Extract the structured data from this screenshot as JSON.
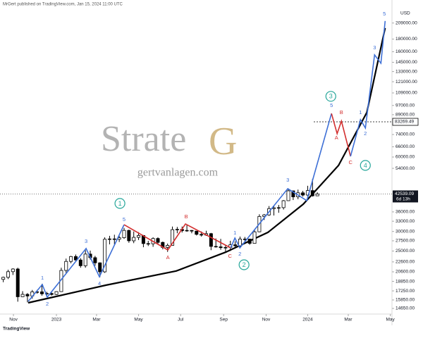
{
  "header": {
    "published": "MrGert published on TradingView.com, Jan 15, 2024 11:00 UTC",
    "currency": "USD",
    "logo": "TradingView"
  },
  "watermark": {
    "word": "Strate",
    "letter": "G",
    "website": "gertvanlagen.com"
  },
  "chart_data": {
    "type": "candlestick",
    "log_scale": true,
    "up_color": "#ffffff",
    "down_color": "#000000",
    "border_color": "#000000",
    "open": [
      19200,
      19570,
      20630,
      21150,
      16330,
      16700,
      16450,
      17100,
      17100,
      16780,
      16840,
      16680,
      17130,
      20870,
      22700,
      23750,
      23000,
      21800,
      24300,
      23500,
      22400,
      20600,
      27900,
      27990,
      27900,
      28300,
      30300,
      27500,
      28400,
      28900,
      26800,
      26750,
      28100,
      27100,
      25850,
      26350,
      30500,
      30600,
      30200,
      30300,
      30100,
      29200,
      29000,
      29400,
      26100,
      26000,
      25800,
      25850,
      26500,
      26250,
      27950,
      27950,
      26850,
      29900,
      34500,
      35000,
      37100,
      37400,
      37450,
      39950,
      43800,
      41400,
      43000,
      42100,
      43900,
      41800
    ],
    "high": [
      19700,
      21000,
      21300,
      21400,
      17200,
      16900,
      17400,
      17400,
      18400,
      17100,
      16970,
      17200,
      21400,
      23300,
      23900,
      24200,
      23400,
      25200,
      25100,
      23900,
      22500,
      28400,
      28800,
      29100,
      28800,
      31000,
      30500,
      30000,
      29800,
      29000,
      27500,
      28400,
      28400,
      27300,
      26800,
      31400,
      31300,
      31400,
      31800,
      30400,
      30100,
      30000,
      30200,
      29600,
      28100,
      28000,
      26400,
      27500,
      27400,
      28600,
      28500,
      28000,
      30400,
      35200,
      35300,
      38000,
      37900,
      38400,
      40200,
      44700,
      43900,
      44300,
      43800,
      45900,
      49000,
      43200
    ],
    "low": [
      18700,
      19250,
      20000,
      15600,
      16300,
      15500,
      16050,
      16800,
      16500,
      16300,
      16500,
      16600,
      17100,
      20400,
      22300,
      22700,
      21400,
      21400,
      23100,
      21800,
      19600,
      20400,
      26600,
      26600,
      27200,
      28000,
      27000,
      26900,
      27700,
      25900,
      26200,
      26000,
      26600,
      25400,
      24800,
      26300,
      29500,
      29700,
      29900,
      29500,
      28900,
      28600,
      28800,
      25200,
      25800,
      25300,
      24900,
      25000,
      26000,
      26000,
      27200,
      26500,
      26800,
      29800,
      33400,
      34700,
      34800,
      35700,
      36800,
      39900,
      40200,
      40500,
      41500,
      40800,
      41500,
      41700
    ],
    "close": [
      19570,
      20630,
      21150,
      16330,
      16700,
      16450,
      17100,
      17100,
      16780,
      16840,
      16680,
      17130,
      20870,
      22700,
      23750,
      23000,
      21800,
      24300,
      23500,
      22400,
      20600,
      27900,
      27990,
      27900,
      28300,
      30300,
      27500,
      28400,
      28900,
      26800,
      26750,
      28100,
      27100,
      25850,
      26350,
      30500,
      30600,
      30200,
      30300,
      30100,
      29200,
      29000,
      29400,
      26100,
      26000,
      25800,
      25850,
      26500,
      26250,
      27950,
      27950,
      26850,
      29900,
      34500,
      35000,
      37100,
      37400,
      37450,
      39950,
      43800,
      41400,
      43000,
      42100,
      43900,
      41800,
      42539.09
    ],
    "xlim": [
      -0.68,
      80.3
    ],
    "xticks": [
      {
        "value": 2.1,
        "label": "Nov"
      },
      {
        "value": 11,
        "label": "2023"
      },
      {
        "value": 19.3,
        "label": "Mar"
      },
      {
        "value": 28,
        "label": "May"
      },
      {
        "value": 36.7,
        "label": "Jul"
      },
      {
        "value": 45.6,
        "label": "Sep"
      },
      {
        "value": 54.4,
        "label": "Nov"
      },
      {
        "value": 63,
        "label": "2024"
      },
      {
        "value": 71.4,
        "label": "Mar"
      },
      {
        "value": 80.1,
        "label": "May"
      }
    ],
    "ylim": [
      13900,
      259000
    ],
    "yticks": [
      {
        "value": 209000,
        "label": "209000.00"
      },
      {
        "value": 180000,
        "label": "180000.00"
      },
      {
        "value": 160000,
        "label": "160000.00"
      },
      {
        "value": 145000,
        "label": "145000.00"
      },
      {
        "value": 133000,
        "label": "133000.00"
      },
      {
        "value": 121000,
        "label": "121000.00"
      },
      {
        "value": 109000,
        "label": "109000.00"
      },
      {
        "value": 97000,
        "label": "97000.00"
      },
      {
        "value": 89000,
        "label": "89000.00"
      },
      {
        "value": 74000,
        "label": "74000.00"
      },
      {
        "value": 66000,
        "label": "66000.00"
      },
      {
        "value": 60000,
        "label": "60000.00"
      },
      {
        "value": 54000,
        "label": "54000.00"
      },
      {
        "value": 36000,
        "label": "36000.00"
      },
      {
        "value": 33000,
        "label": "33000.00"
      },
      {
        "value": 30000,
        "label": "30000.00"
      },
      {
        "value": 27500,
        "label": "27500.00"
      },
      {
        "value": 25000,
        "label": "25000.00"
      },
      {
        "value": 22600,
        "label": "22600.00"
      },
      {
        "value": 20600,
        "label": "20600.00"
      },
      {
        "value": 18850,
        "label": "18850.00"
      },
      {
        "value": 17250,
        "label": "17250.00"
      },
      {
        "value": 15850,
        "label": "15850.00"
      },
      {
        "value": 14650,
        "label": "14650.00"
      }
    ],
    "price_line": {
      "value": 83269.49,
      "label": "83269.49",
      "color": "#000000"
    },
    "last_price": {
      "value": 42539.09,
      "label": "42539.09",
      "countdown": "6d 13h",
      "color": "#131722"
    },
    "support_curve": {
      "color": "#000000",
      "x": [
        5.16,
        21.22,
        35.8,
        46.0,
        54.8,
        62.09,
        69.39,
        75.23,
        79.03
      ],
      "y": [
        15440,
        18190,
        20760,
        24730,
        29760,
        38680,
        55500,
        90800,
        199500
      ]
    },
    "waves": [
      {
        "color": "#3d6fd6",
        "x": [
          5.16,
          8.08,
          9.1,
          17.13,
          19.9,
          25.0
        ],
        "y": [
          15640,
          18310,
          16270,
          25590,
          19680,
          31940
        ]
      },
      {
        "color": "#d32f2f",
        "x": [
          25.0,
          34.06,
          37.71,
          47.06
        ],
        "y": [
          31940,
          25250,
          32190,
          25750
        ]
      },
      {
        "color": "#3d6fd6",
        "x": [
          47.06,
          47.93,
          48.96,
          58.88,
          62.82,
          67.93
        ],
        "y": [
          25750,
          28230,
          25750,
          44700,
          39980,
          90000
        ]
      },
      {
        "color": "#d32f2f",
        "x": [
          67.93,
          69.1,
          69.98,
          71.87
        ],
        "y": [
          90000,
          74600,
          83900,
          60400
        ]
      },
      {
        "color": "#3d6fd6",
        "x": [
          71.87,
          73.92,
          74.94,
          76.84,
          78.15,
          79.03
        ],
        "y": [
          60400,
          85000,
          78600,
          155400,
          143700,
          213000
        ]
      }
    ],
    "wave_labels": [
      {
        "text": "1",
        "color": "#3d6fd6",
        "x": 8.08,
        "y": 19430
      },
      {
        "text": "2",
        "color": "#3d6fd6",
        "x": 9.1,
        "y": 15230
      },
      {
        "text": "3",
        "color": "#3d6fd6",
        "x": 17.13,
        "y": 27320
      },
      {
        "text": "4",
        "color": "#3d6fd6",
        "x": 19.9,
        "y": 18430
      },
      {
        "text": "5",
        "color": "#3d6fd6",
        "x": 25.0,
        "y": 33490
      },
      {
        "text": "A",
        "color": "#d32f2f",
        "x": 34.06,
        "y": 23500
      },
      {
        "text": "B",
        "color": "#d32f2f",
        "x": 37.86,
        "y": 34380
      },
      {
        "text": "C",
        "color": "#d32f2f",
        "x": 46.91,
        "y": 23810
      },
      {
        "text": "1",
        "color": "#3d6fd6",
        "x": 47.93,
        "y": 29560
      },
      {
        "text": "2",
        "color": "#3d6fd6",
        "x": 48.96,
        "y": 24280
      },
      {
        "text": "3",
        "color": "#3d6fd6",
        "x": 58.88,
        "y": 48350
      },
      {
        "text": "5",
        "color": "#3d6fd6",
        "x": 67.93,
        "y": 96970
      },
      {
        "text": "A",
        "color": "#d32f2f",
        "x": 68.96,
        "y": 71700
      },
      {
        "text": "B",
        "color": "#d32f2f",
        "x": 69.98,
        "y": 90800
      },
      {
        "text": "C",
        "color": "#d32f2f",
        "x": 71.87,
        "y": 56980
      },
      {
        "text": "1",
        "color": "#3d6fd6",
        "x": 73.92,
        "y": 90800
      },
      {
        "text": "2",
        "color": "#3d6fd6",
        "x": 74.94,
        "y": 74560
      },
      {
        "text": "3",
        "color": "#3d6fd6",
        "x": 76.84,
        "y": 166000
      },
      {
        "text": "5",
        "color": "#3d6fd6",
        "x": 78.88,
        "y": 227500
      }
    ],
    "degree_labels": [
      {
        "text": "1",
        "color": "#26a69a",
        "x": 24.14,
        "y": 38950
      },
      {
        "text": "2",
        "color": "#26a69a",
        "x": 49.83,
        "y": 22000
      },
      {
        "text": "3",
        "color": "#26a69a",
        "x": 67.79,
        "y": 105600
      },
      {
        "text": "4",
        "color": "#26a69a",
        "x": 74.94,
        "y": 55500
      }
    ]
  }
}
